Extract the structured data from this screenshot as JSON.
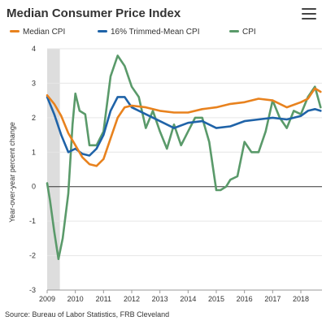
{
  "header": {
    "title": "Median Consumer Price Index",
    "menu_icon": "hamburger-icon"
  },
  "source": "Source: Bureau of Labor Statistics, FRB Cleveland",
  "colors": {
    "median": "#e8821e",
    "trimmed": "#1f63a8",
    "cpi": "#5a9a6a",
    "recession": "#dddddd",
    "grid": "#e6e6e6",
    "zero": "#333333"
  },
  "chart_data": {
    "type": "line",
    "title": "Median Consumer Price Index",
    "ylabel": "Year-over-year percent change",
    "xlabel": "",
    "ylim": [
      -3,
      4
    ],
    "xlim": [
      2009.0,
      2018.75
    ],
    "y_ticks": [
      "-3",
      "-2",
      "-1",
      "0",
      "1",
      "2",
      "3",
      "4"
    ],
    "x_ticks": [
      "2009",
      "2010",
      "2011",
      "2012",
      "2013",
      "2014",
      "2015",
      "2016",
      "2017",
      "2018"
    ],
    "grid": true,
    "legend_position": "top",
    "recession": [
      2009.0,
      2009.45
    ],
    "series": [
      {
        "name": "Median CPI",
        "x": [
          2009.0,
          2009.25,
          2009.5,
          2009.75,
          2010.0,
          2010.25,
          2010.5,
          2010.75,
          2011.0,
          2011.25,
          2011.5,
          2011.75,
          2012.0,
          2012.5,
          2013.0,
          2013.5,
          2014.0,
          2014.5,
          2015.0,
          2015.5,
          2016.0,
          2016.5,
          2017.0,
          2017.5,
          2018.0,
          2018.25,
          2018.5,
          2018.7
        ],
        "values": [
          2.65,
          2.4,
          2.05,
          1.55,
          1.2,
          0.85,
          0.65,
          0.6,
          0.8,
          1.4,
          2.0,
          2.3,
          2.35,
          2.3,
          2.2,
          2.15,
          2.15,
          2.25,
          2.3,
          2.4,
          2.45,
          2.55,
          2.5,
          2.3,
          2.45,
          2.55,
          2.85,
          2.75
        ]
      },
      {
        "name": "16% Trimmed-Mean CPI",
        "x": [
          2009.0,
          2009.25,
          2009.5,
          2009.75,
          2010.0,
          2010.25,
          2010.5,
          2010.75,
          2011.0,
          2011.25,
          2011.5,
          2011.75,
          2012.0,
          2012.5,
          2013.0,
          2013.5,
          2014.0,
          2014.5,
          2015.0,
          2015.5,
          2016.0,
          2016.5,
          2017.0,
          2017.5,
          2018.0,
          2018.25,
          2018.5,
          2018.7
        ],
        "values": [
          2.6,
          2.1,
          1.5,
          1.0,
          1.1,
          0.95,
          0.9,
          1.1,
          1.5,
          2.2,
          2.6,
          2.6,
          2.3,
          2.1,
          1.9,
          1.7,
          1.85,
          1.9,
          1.7,
          1.75,
          1.9,
          1.95,
          2.0,
          1.95,
          2.05,
          2.2,
          2.25,
          2.2
        ]
      },
      {
        "name": "CPI",
        "x": [
          2009.0,
          2009.1,
          2009.25,
          2009.4,
          2009.55,
          2009.75,
          2009.9,
          2010.0,
          2010.15,
          2010.35,
          2010.5,
          2010.75,
          2011.0,
          2011.25,
          2011.5,
          2011.75,
          2012.0,
          2012.25,
          2012.5,
          2012.75,
          2013.0,
          2013.25,
          2013.5,
          2013.75,
          2014.0,
          2014.25,
          2014.5,
          2014.75,
          2015.0,
          2015.15,
          2015.35,
          2015.5,
          2015.75,
          2016.0,
          2016.25,
          2016.5,
          2016.75,
          2017.0,
          2017.25,
          2017.5,
          2017.75,
          2018.0,
          2018.25,
          2018.5,
          2018.7
        ],
        "values": [
          0.1,
          -0.4,
          -1.3,
          -2.1,
          -1.5,
          -0.2,
          1.8,
          2.7,
          2.2,
          2.1,
          1.2,
          1.2,
          1.6,
          3.2,
          3.8,
          3.5,
          2.9,
          2.6,
          1.7,
          2.2,
          1.6,
          1.1,
          1.8,
          1.2,
          1.6,
          2.0,
          2.0,
          1.3,
          -0.1,
          -0.1,
          0.0,
          0.2,
          0.3,
          1.3,
          1.0,
          1.0,
          1.6,
          2.5,
          2.0,
          1.7,
          2.2,
          2.1,
          2.6,
          2.9,
          2.3
        ]
      }
    ]
  }
}
